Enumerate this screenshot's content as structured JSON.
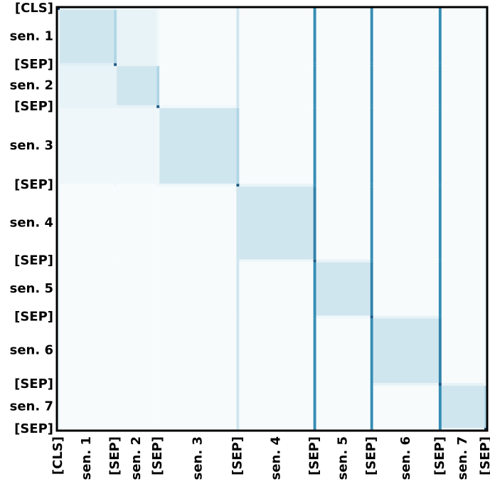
{
  "chart_data": {
    "type": "heatmap",
    "categories": [
      "[CLS]",
      "sen. 1",
      "[SEP]",
      "sen. 2",
      "[SEP]",
      "sen. 3",
      "[SEP]",
      "sen. 4",
      "[SEP]",
      "sen. 5",
      "[SEP]",
      "sen. 6",
      "[SEP]",
      "sen. 7",
      "[SEP]"
    ],
    "bins": [
      0,
      1,
      20,
      21,
      35,
      36,
      63,
      64,
      90,
      91,
      110,
      111,
      134,
      135,
      150,
      151
    ],
    "values": [
      [
        0.9,
        0.06,
        0.06,
        0.04,
        0.04,
        0.02,
        0.12,
        0.02,
        0.55,
        0.02,
        0.55,
        0.02,
        0.55,
        0.02,
        0.05
      ],
      [
        0.05,
        0.12,
        0.2,
        0.06,
        0.04,
        0.02,
        0.12,
        0.02,
        0.55,
        0.02,
        0.55,
        0.02,
        0.55,
        0.02,
        0.05
      ],
      [
        0.05,
        0.08,
        0.8,
        0.06,
        0.04,
        0.02,
        0.12,
        0.02,
        0.55,
        0.02,
        0.55,
        0.02,
        0.55,
        0.02,
        0.05
      ],
      [
        0.05,
        0.06,
        0.06,
        0.12,
        0.2,
        0.02,
        0.12,
        0.02,
        0.55,
        0.02,
        0.55,
        0.02,
        0.55,
        0.02,
        0.05
      ],
      [
        0.05,
        0.06,
        0.06,
        0.06,
        0.8,
        0.04,
        0.12,
        0.02,
        0.55,
        0.02,
        0.55,
        0.02,
        0.55,
        0.02,
        0.05
      ],
      [
        0.05,
        0.04,
        0.04,
        0.04,
        0.04,
        0.12,
        0.2,
        0.02,
        0.55,
        0.02,
        0.55,
        0.02,
        0.55,
        0.02,
        0.05
      ],
      [
        0.05,
        0.02,
        0.04,
        0.02,
        0.04,
        0.04,
        0.8,
        0.06,
        0.55,
        0.02,
        0.55,
        0.02,
        0.55,
        0.02,
        0.05
      ],
      [
        0.05,
        0.02,
        0.02,
        0.02,
        0.02,
        0.02,
        0.12,
        0.12,
        0.6,
        0.02,
        0.55,
        0.02,
        0.55,
        0.02,
        0.05
      ],
      [
        0.05,
        0.02,
        0.02,
        0.02,
        0.02,
        0.02,
        0.12,
        0.04,
        0.8,
        0.06,
        0.55,
        0.02,
        0.55,
        0.02,
        0.05
      ],
      [
        0.05,
        0.02,
        0.02,
        0.02,
        0.02,
        0.02,
        0.12,
        0.02,
        0.55,
        0.12,
        0.6,
        0.02,
        0.55,
        0.02,
        0.05
      ],
      [
        0.05,
        0.02,
        0.02,
        0.02,
        0.02,
        0.02,
        0.12,
        0.02,
        0.55,
        0.04,
        0.8,
        0.06,
        0.55,
        0.02,
        0.05
      ],
      [
        0.05,
        0.02,
        0.02,
        0.02,
        0.02,
        0.02,
        0.12,
        0.02,
        0.55,
        0.02,
        0.55,
        0.12,
        0.6,
        0.02,
        0.05
      ],
      [
        0.05,
        0.02,
        0.02,
        0.02,
        0.02,
        0.02,
        0.12,
        0.02,
        0.55,
        0.02,
        0.55,
        0.06,
        0.8,
        0.06,
        0.05
      ],
      [
        0.05,
        0.02,
        0.02,
        0.02,
        0.02,
        0.02,
        0.12,
        0.02,
        0.55,
        0.02,
        0.55,
        0.02,
        0.55,
        0.12,
        0.2
      ],
      [
        0.05,
        0.02,
        0.02,
        0.02,
        0.02,
        0.02,
        0.12,
        0.02,
        0.55,
        0.02,
        0.55,
        0.02,
        0.55,
        0.04,
        0.9
      ]
    ],
    "zlim": [
      0,
      1
    ],
    "colors": [
      "#ffffff",
      "#3a98bd",
      "#0b2e5e"
    ]
  }
}
